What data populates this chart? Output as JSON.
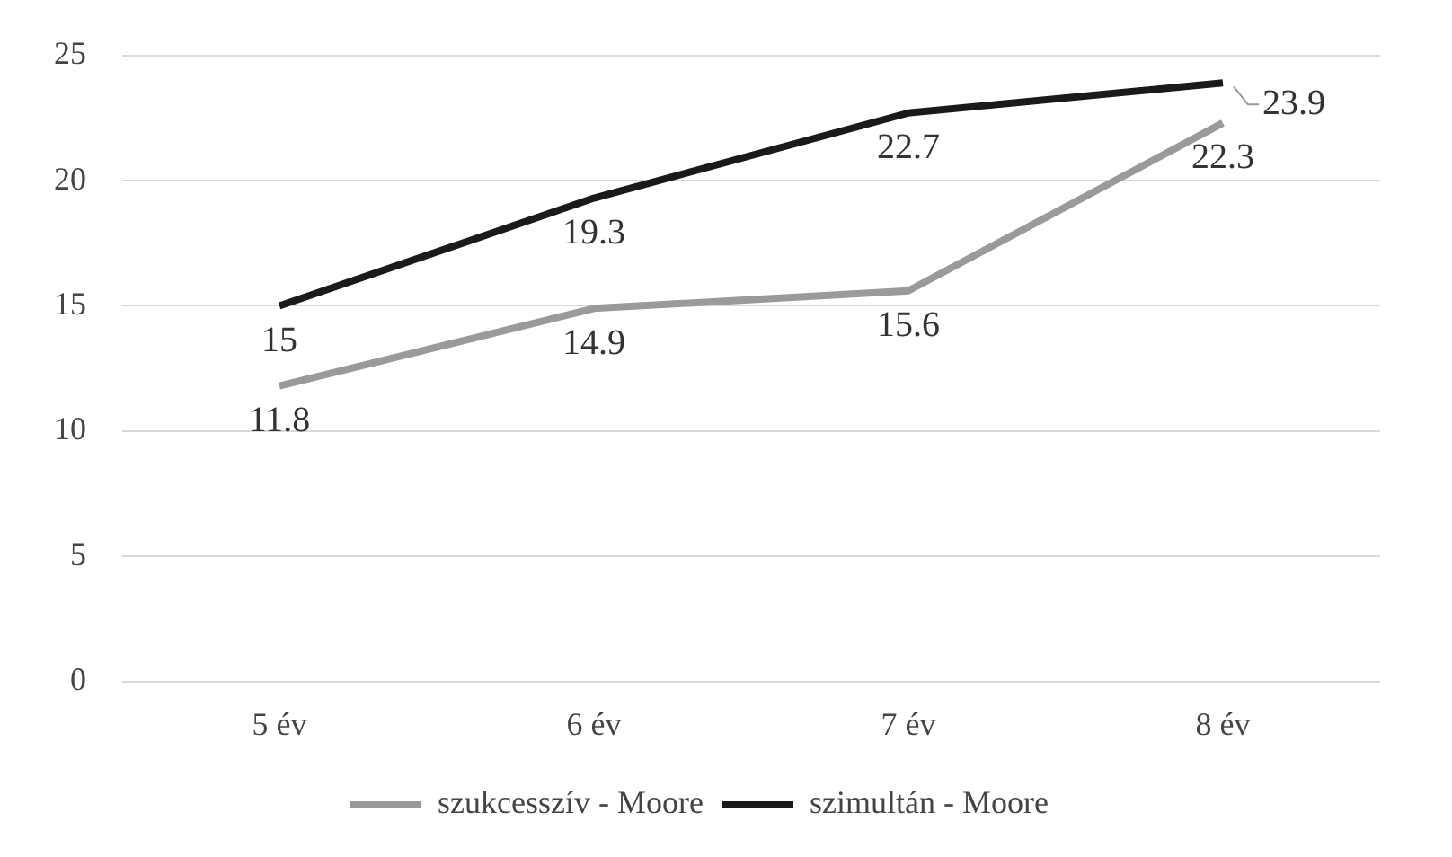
{
  "chart_data": {
    "type": "line",
    "categories": [
      "5 év",
      "6 év",
      "7 év",
      "8 év"
    ],
    "series": [
      {
        "name": "szukcesszív - Moore",
        "color": "#9a9a9a",
        "values": [
          11.8,
          14.9,
          15.6,
          22.3
        ]
      },
      {
        "name": "szimultán - Moore",
        "color": "#1a1a1a",
        "values": [
          15,
          19.3,
          22.7,
          23.9
        ]
      }
    ],
    "ylim": [
      0,
      25
    ],
    "yticks": [
      0,
      5,
      10,
      15,
      20,
      25
    ],
    "grid": "y",
    "legend": "bottom",
    "marker": "none",
    "line_style": "solid",
    "data_labels": true
  }
}
